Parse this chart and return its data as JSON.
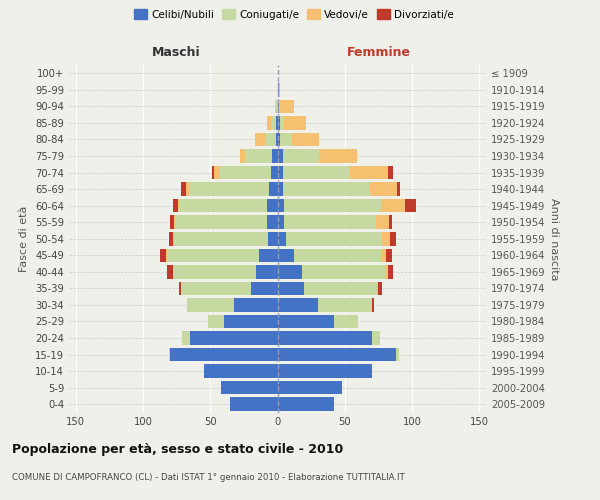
{
  "age_groups": [
    "0-4",
    "5-9",
    "10-14",
    "15-19",
    "20-24",
    "25-29",
    "30-34",
    "35-39",
    "40-44",
    "45-49",
    "50-54",
    "55-59",
    "60-64",
    "65-69",
    "70-74",
    "75-79",
    "80-84",
    "85-89",
    "90-94",
    "95-99",
    "100+"
  ],
  "birth_years": [
    "2005-2009",
    "2000-2004",
    "1995-1999",
    "1990-1994",
    "1985-1989",
    "1980-1984",
    "1975-1979",
    "1970-1974",
    "1965-1969",
    "1960-1964",
    "1955-1959",
    "1950-1954",
    "1945-1949",
    "1940-1944",
    "1935-1939",
    "1930-1934",
    "1925-1929",
    "1920-1924",
    "1915-1919",
    "1910-1914",
    "≤ 1909"
  ],
  "males": {
    "celibi": [
      35,
      42,
      55,
      80,
      65,
      40,
      32,
      20,
      16,
      14,
      7,
      8,
      8,
      6,
      5,
      4,
      1,
      1,
      0,
      0,
      0
    ],
    "coniugati": [
      0,
      0,
      0,
      1,
      6,
      12,
      35,
      52,
      62,
      68,
      70,
      68,
      65,
      60,
      38,
      20,
      8,
      4,
      2,
      0,
      0
    ],
    "vedovi": [
      0,
      0,
      0,
      0,
      0,
      0,
      0,
      0,
      0,
      1,
      1,
      1,
      1,
      2,
      4,
      4,
      8,
      3,
      0,
      0,
      0
    ],
    "divorziati": [
      0,
      0,
      0,
      0,
      0,
      0,
      0,
      1,
      4,
      4,
      3,
      3,
      4,
      4,
      2,
      0,
      0,
      0,
      0,
      0,
      0
    ]
  },
  "females": {
    "nubili": [
      42,
      48,
      70,
      88,
      70,
      42,
      30,
      20,
      18,
      12,
      6,
      5,
      5,
      4,
      4,
      4,
      2,
      2,
      1,
      1,
      0
    ],
    "coniugate": [
      0,
      0,
      0,
      2,
      6,
      18,
      40,
      54,
      62,
      65,
      72,
      68,
      72,
      65,
      50,
      27,
      9,
      3,
      1,
      0,
      0
    ],
    "vedove": [
      0,
      0,
      0,
      0,
      0,
      0,
      0,
      1,
      2,
      4,
      6,
      10,
      18,
      20,
      28,
      28,
      20,
      16,
      10,
      1,
      0
    ],
    "divorziate": [
      0,
      0,
      0,
      0,
      0,
      0,
      2,
      3,
      4,
      4,
      4,
      2,
      8,
      2,
      4,
      0,
      0,
      0,
      0,
      0,
      0
    ]
  },
  "colors": {
    "celibi_nubili": "#4472c4",
    "coniugati": "#c5d9a0",
    "vedovi": "#f5c070",
    "divorziati": "#c0392b"
  },
  "xlim": 155,
  "title": "Popolazione per età, sesso e stato civile - 2010",
  "subtitle": "COMUNE DI CAMPOFRANCO (CL) - Dati ISTAT 1° gennaio 2010 - Elaborazione TUTTITALIA.IT",
  "ylabel_left": "Fasce di età",
  "ylabel_right": "Anni di nascita",
  "xlabel_left": "Maschi",
  "xlabel_right": "Femmine",
  "bg_color": "#f0f0eb",
  "legend_labels": [
    "Celibi/Nubili",
    "Coniugati/e",
    "Vedovi/e",
    "Divorziati/e"
  ]
}
